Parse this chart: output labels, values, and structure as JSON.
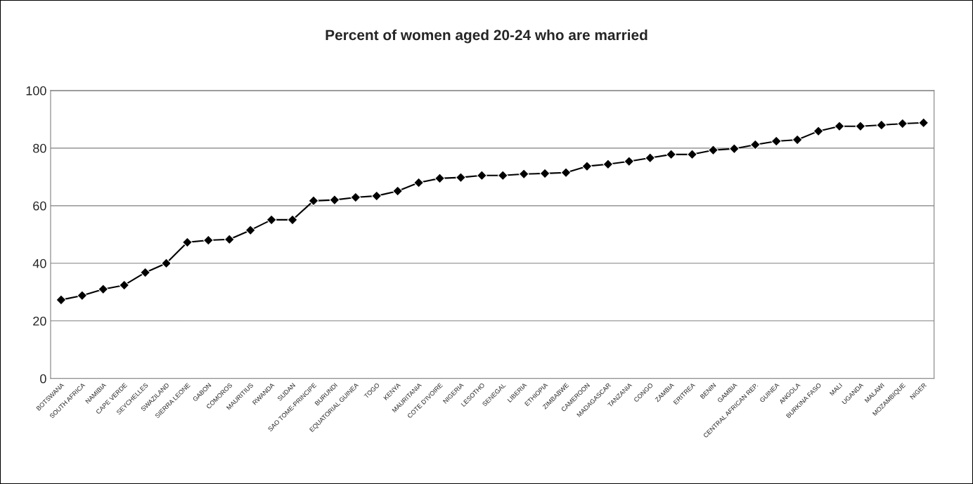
{
  "chart_data": {
    "type": "line",
    "title": "Percent of women aged 20-24 who are married",
    "categories": [
      "BOTSWANA",
      "SOUTH AFRICA",
      "NAMIBIA",
      "CAPE VERDE",
      "SEYCHELLES",
      "SWAZILAND",
      "SIERRA LEONE",
      "GABON",
      "COMOROS",
      "MAURITIUS",
      "RWANDA",
      "SUDAN",
      "SAO TOME-PRINCIPE",
      "BURUNDI",
      "EQUATORIAL GUINEA",
      "TOGO",
      "KENYA",
      "MAURITANIA",
      "COTE D'IVOIRE",
      "NIGERIA",
      "LESOTHO",
      "SENEGAL",
      "LIBERIA",
      "ETHIOPIA",
      "ZIMBABWE",
      "CAMEROON",
      "MADAGASCAR",
      "TANZANIA",
      "CONGO",
      "ZAMBIA",
      "ERITREA",
      "BENIN",
      "GAMBIA",
      "CENTRAL AFRICAN REP.",
      "GUINEA",
      "ANGOLA",
      "BURKINA FASO",
      "MALI",
      "UGANDA",
      "MALAWI",
      "MOZAMBIQUE",
      "NIGER"
    ],
    "series": [
      {
        "color": "#000000",
        "values": [
          27.3,
          28.8,
          31,
          32.4,
          36.8,
          40,
          47.3,
          48,
          48.3,
          51.5,
          55.1,
          55.1,
          61.7,
          62,
          62.9,
          63.4,
          65.1,
          68,
          69.5,
          69.8,
          70.5,
          70.5,
          71,
          71.2,
          71.5,
          73.7,
          74.4,
          75.4,
          76.6,
          77.8,
          77.8,
          79.3,
          79.8,
          81.2,
          82.4,
          82.9,
          85.9,
          87.6,
          87.6,
          88,
          88.5,
          88.8
        ]
      }
    ],
    "ylim": [
      0,
      100
    ],
    "yticks": [
      0,
      20,
      40,
      60,
      80,
      100
    ],
    "grid": "y",
    "marker": "diamond",
    "line_style": "solid",
    "legend": false
  }
}
